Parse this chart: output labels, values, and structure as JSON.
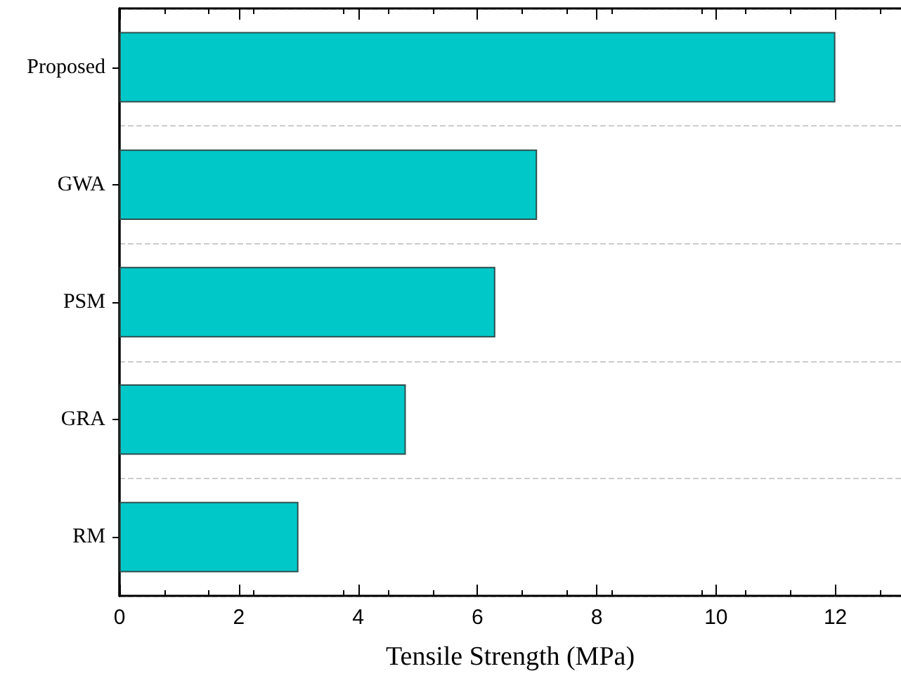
{
  "chart_data": {
    "type": "bar",
    "orientation": "horizontal",
    "xlabel": "Tensile Strength (MPa)",
    "categories": [
      "Proposed",
      "GWA",
      "PSM",
      "GRA",
      "RM"
    ],
    "values": [
      12,
      7.0,
      6.3,
      4.8,
      3.0
    ],
    "color": "#00c8c8",
    "xlim": [
      0,
      13.1
    ],
    "xticks": [
      0,
      2,
      4,
      6,
      8,
      10,
      12
    ],
    "grid": "y"
  }
}
